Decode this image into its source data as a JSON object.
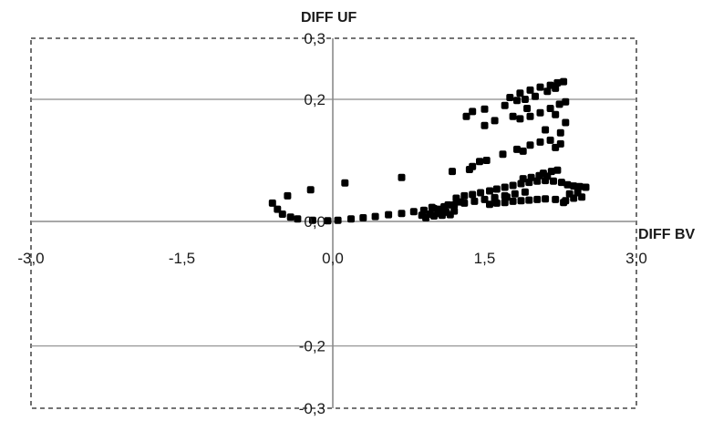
{
  "chart_data": {
    "type": "scatter",
    "xlabel": "DIFF BV",
    "ylabel": "DIFF UF",
    "xlim": [
      -3.0,
      3.0
    ],
    "ylim": [
      -0.3,
      0.3
    ],
    "x_ticks": [
      {
        "value": -3.0,
        "label": "-3,0"
      },
      {
        "value": -1.5,
        "label": "-1,5"
      },
      {
        "value": 0.0,
        "label": "0,0"
      },
      {
        "value": 1.5,
        "label": "1,5"
      },
      {
        "value": 3.0,
        "label": "3,0"
      }
    ],
    "y_ticks": [
      {
        "value": 0.3,
        "label": "0,3"
      },
      {
        "value": 0.2,
        "label": "0,2"
      },
      {
        "value": 0.0,
        "label": "0,0"
      },
      {
        "value": -0.2,
        "label": "-0,2"
      },
      {
        "value": -0.3,
        "label": "-0,3"
      }
    ],
    "gridlines_y": [
      0.2,
      -0.2
    ],
    "grid": true,
    "legend": "none",
    "marker_color": "#000000",
    "points": [
      {
        "x": -0.6,
        "y": 0.03
      },
      {
        "x": -0.55,
        "y": 0.02
      },
      {
        "x": -0.5,
        "y": 0.012
      },
      {
        "x": -0.42,
        "y": 0.007
      },
      {
        "x": -0.35,
        "y": 0.004
      },
      {
        "x": -0.2,
        "y": 0.002
      },
      {
        "x": -0.05,
        "y": 0.001
      },
      {
        "x": 0.05,
        "y": 0.002
      },
      {
        "x": 0.18,
        "y": 0.004
      },
      {
        "x": 0.3,
        "y": 0.006
      },
      {
        "x": 0.42,
        "y": 0.008
      },
      {
        "x": 0.55,
        "y": 0.011
      },
      {
        "x": 0.68,
        "y": 0.013
      },
      {
        "x": 0.8,
        "y": 0.016
      },
      {
        "x": 0.9,
        "y": 0.018
      },
      {
        "x": 1.0,
        "y": 0.021
      },
      {
        "x": 1.1,
        "y": 0.024
      },
      {
        "x": 1.2,
        "y": 0.027
      },
      {
        "x": 1.3,
        "y": 0.03
      },
      {
        "x": 1.4,
        "y": 0.033
      },
      {
        "x": 1.5,
        "y": 0.036
      },
      {
        "x": 1.6,
        "y": 0.039
      },
      {
        "x": 1.7,
        "y": 0.042
      },
      {
        "x": 1.8,
        "y": 0.045
      },
      {
        "x": 1.9,
        "y": 0.048
      },
      {
        "x": -0.45,
        "y": 0.042
      },
      {
        "x": -0.22,
        "y": 0.052
      },
      {
        "x": 0.12,
        "y": 0.063
      },
      {
        "x": 0.68,
        "y": 0.072
      },
      {
        "x": 1.18,
        "y": 0.082
      },
      {
        "x": 1.38,
        "y": 0.09
      },
      {
        "x": 1.52,
        "y": 0.1
      },
      {
        "x": 1.68,
        "y": 0.11
      },
      {
        "x": 1.82,
        "y": 0.118
      },
      {
        "x": 1.95,
        "y": 0.125
      },
      {
        "x": 2.05,
        "y": 0.13
      },
      {
        "x": 2.15,
        "y": 0.133
      },
      {
        "x": 2.25,
        "y": 0.127
      },
      {
        "x": 1.88,
        "y": 0.115
      },
      {
        "x": 2.2,
        "y": 0.121
      },
      {
        "x": 1.35,
        "y": 0.085
      },
      {
        "x": 1.45,
        "y": 0.098
      },
      {
        "x": 0.88,
        "y": 0.01
      },
      {
        "x": 0.92,
        "y": 0.006
      },
      {
        "x": 0.96,
        "y": 0.012
      },
      {
        "x": 1.0,
        "y": 0.009
      },
      {
        "x": 1.04,
        "y": 0.013
      },
      {
        "x": 1.08,
        "y": 0.01
      },
      {
        "x": 1.12,
        "y": 0.015
      },
      {
        "x": 1.16,
        "y": 0.011
      },
      {
        "x": 0.9,
        "y": 0.018
      },
      {
        "x": 0.98,
        "y": 0.023
      },
      {
        "x": 1.06,
        "y": 0.02
      },
      {
        "x": 1.14,
        "y": 0.027
      },
      {
        "x": 1.2,
        "y": 0.017
      },
      {
        "x": 1.26,
        "y": 0.032
      },
      {
        "x": 1.22,
        "y": 0.038
      },
      {
        "x": 1.3,
        "y": 0.042
      },
      {
        "x": 1.38,
        "y": 0.044
      },
      {
        "x": 1.46,
        "y": 0.047
      },
      {
        "x": 1.55,
        "y": 0.05
      },
      {
        "x": 1.62,
        "y": 0.053
      },
      {
        "x": 1.7,
        "y": 0.056
      },
      {
        "x": 1.78,
        "y": 0.059
      },
      {
        "x": 1.86,
        "y": 0.062
      },
      {
        "x": 1.94,
        "y": 0.064
      },
      {
        "x": 2.02,
        "y": 0.066
      },
      {
        "x": 2.1,
        "y": 0.067
      },
      {
        "x": 2.18,
        "y": 0.066
      },
      {
        "x": 2.26,
        "y": 0.064
      },
      {
        "x": 2.32,
        "y": 0.06
      },
      {
        "x": 2.38,
        "y": 0.058
      },
      {
        "x": 2.44,
        "y": 0.057
      },
      {
        "x": 2.5,
        "y": 0.056
      },
      {
        "x": 1.88,
        "y": 0.07
      },
      {
        "x": 1.96,
        "y": 0.072
      },
      {
        "x": 2.04,
        "y": 0.075
      },
      {
        "x": 2.12,
        "y": 0.074
      },
      {
        "x": 2.08,
        "y": 0.079
      },
      {
        "x": 2.16,
        "y": 0.082
      },
      {
        "x": 2.22,
        "y": 0.084
      },
      {
        "x": 1.55,
        "y": 0.028
      },
      {
        "x": 1.62,
        "y": 0.03
      },
      {
        "x": 1.7,
        "y": 0.031
      },
      {
        "x": 1.78,
        "y": 0.033
      },
      {
        "x": 1.86,
        "y": 0.034
      },
      {
        "x": 1.94,
        "y": 0.035
      },
      {
        "x": 2.02,
        "y": 0.036
      },
      {
        "x": 2.1,
        "y": 0.037
      },
      {
        "x": 2.2,
        "y": 0.036
      },
      {
        "x": 2.3,
        "y": 0.034
      },
      {
        "x": 2.38,
        "y": 0.038
      },
      {
        "x": 2.46,
        "y": 0.04
      },
      {
        "x": 2.34,
        "y": 0.045
      },
      {
        "x": 2.42,
        "y": 0.047
      },
      {
        "x": 2.28,
        "y": 0.031
      },
      {
        "x": 1.6,
        "y": 0.038
      },
      {
        "x": 1.72,
        "y": 0.04
      },
      {
        "x": 1.7,
        "y": 0.19
      },
      {
        "x": 1.85,
        "y": 0.21
      },
      {
        "x": 1.95,
        "y": 0.215
      },
      {
        "x": 2.05,
        "y": 0.22
      },
      {
        "x": 2.15,
        "y": 0.223
      },
      {
        "x": 2.22,
        "y": 0.227
      },
      {
        "x": 2.28,
        "y": 0.229
      },
      {
        "x": 1.82,
        "y": 0.198
      },
      {
        "x": 1.75,
        "y": 0.203
      },
      {
        "x": 1.9,
        "y": 0.2
      },
      {
        "x": 2.0,
        "y": 0.205
      },
      {
        "x": 2.12,
        "y": 0.213
      },
      {
        "x": 2.2,
        "y": 0.218
      },
      {
        "x": 2.3,
        "y": 0.196
      },
      {
        "x": 2.24,
        "y": 0.192
      },
      {
        "x": 2.15,
        "y": 0.185
      },
      {
        "x": 2.05,
        "y": 0.178
      },
      {
        "x": 1.95,
        "y": 0.172
      },
      {
        "x": 1.85,
        "y": 0.168
      },
      {
        "x": 1.78,
        "y": 0.172
      },
      {
        "x": 1.5,
        "y": 0.184
      },
      {
        "x": 1.38,
        "y": 0.18
      },
      {
        "x": 1.32,
        "y": 0.172
      },
      {
        "x": 1.6,
        "y": 0.165
      },
      {
        "x": 1.5,
        "y": 0.157
      },
      {
        "x": 2.25,
        "y": 0.145
      },
      {
        "x": 2.1,
        "y": 0.15
      },
      {
        "x": 2.3,
        "y": 0.162
      },
      {
        "x": 2.2,
        "y": 0.175
      },
      {
        "x": 1.92,
        "y": 0.185
      }
    ]
  }
}
